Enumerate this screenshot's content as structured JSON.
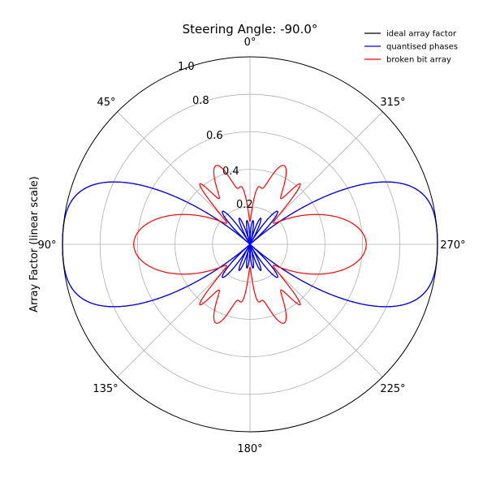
{
  "chart_data": {
    "type": "line",
    "projection": "polar",
    "title": "Steering Angle: -90.0°",
    "ylabel": "Array Factor (linear scale)",
    "theta_zero_location": "top",
    "theta_direction": "counterclockwise",
    "theta_ticks": [
      "0°",
      "45°",
      "90°",
      "135°",
      "180°",
      "225°",
      "270°",
      "315°"
    ],
    "r_ticks": [
      "0.2",
      "0.4",
      "0.6",
      "0.8",
      "1.0"
    ],
    "r_tick_values": [
      0.2,
      0.4,
      0.6,
      0.8,
      1.0
    ],
    "rlim": [
      0,
      1.0
    ],
    "grid": true,
    "legend": {
      "placement": "top-right"
    },
    "series": [
      {
        "name": "ideal array factor",
        "color": "#000000",
        "model": "uniform-array",
        "elements": 8,
        "spacing_wavelengths": 0.5,
        "steer_deg": -90.0
      },
      {
        "name": "quantised phases",
        "color": "#0000ff",
        "model": "uniform-array",
        "elements": 8,
        "spacing_wavelengths": 0.5,
        "steer_deg": -90.0
      },
      {
        "name": "broken bit array",
        "color": "#ff0000",
        "model": "lobe-sum",
        "lobes": [
          {
            "theta_deg": 90,
            "width_deg": 25,
            "amp": 0.62
          },
          {
            "theta_deg": 270,
            "width_deg": 25,
            "amp": 0.62
          },
          {
            "theta_deg": 23,
            "width_deg": 9,
            "amp": 0.44
          },
          {
            "theta_deg": -23,
            "width_deg": 9,
            "amp": 0.44
          },
          {
            "theta_deg": 157,
            "width_deg": 9,
            "amp": 0.44
          },
          {
            "theta_deg": 203,
            "width_deg": 9,
            "amp": 0.44
          },
          {
            "theta_deg": 40,
            "width_deg": 3,
            "amp": 0.26
          },
          {
            "theta_deg": -40,
            "width_deg": 3,
            "amp": 0.26
          },
          {
            "theta_deg": 140,
            "width_deg": 3,
            "amp": 0.26
          },
          {
            "theta_deg": 220,
            "width_deg": 3,
            "amp": 0.26
          },
          {
            "theta_deg": 7,
            "width_deg": 4,
            "amp": 0.2
          },
          {
            "theta_deg": -7,
            "width_deg": 4,
            "amp": 0.2
          },
          {
            "theta_deg": 173,
            "width_deg": 4,
            "amp": 0.2
          },
          {
            "theta_deg": 187,
            "width_deg": 4,
            "amp": 0.2
          }
        ]
      }
    ]
  }
}
